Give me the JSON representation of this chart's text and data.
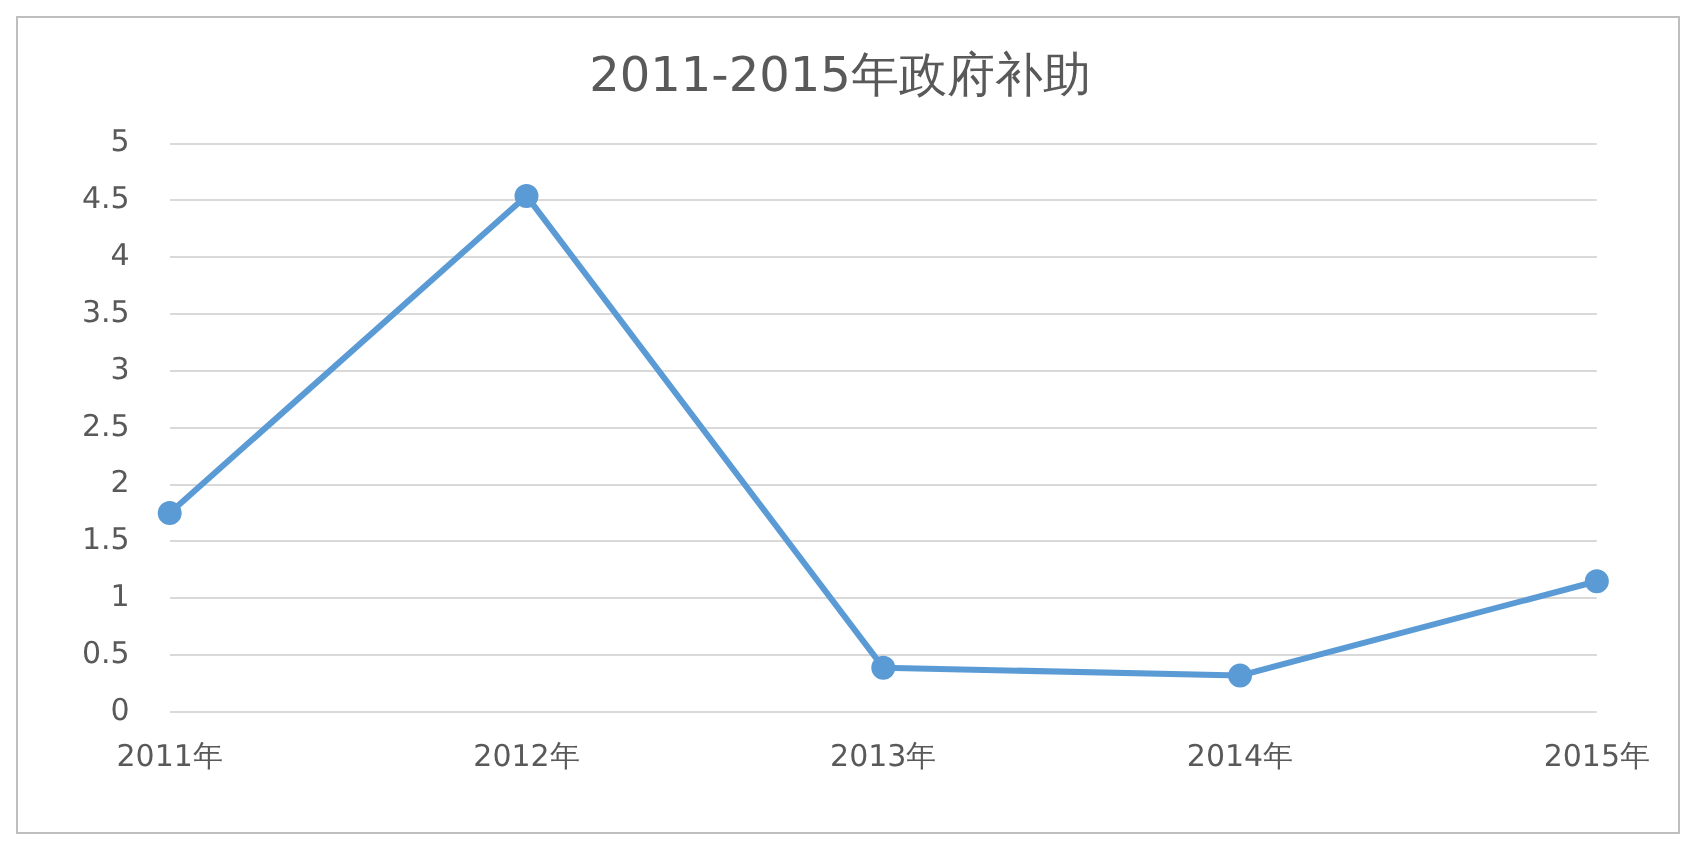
{
  "chart_data": {
    "type": "line",
    "title": "2011-2015年政府补助",
    "categories": [
      "2011年",
      "2012年",
      "2013年",
      "2014年",
      "2015年"
    ],
    "series": [
      {
        "color": "#5b9bd5",
        "values": [
          1.75,
          4.54,
          0.39,
          0.32,
          1.15
        ]
      }
    ],
    "ylim": [
      0,
      5
    ],
    "yticks": [
      0,
      0.5,
      1,
      1.5,
      2,
      2.5,
      3,
      3.5,
      4,
      4.5,
      5
    ],
    "grid": "y",
    "marker": "circle",
    "line_style": "solid",
    "legend": false
  }
}
